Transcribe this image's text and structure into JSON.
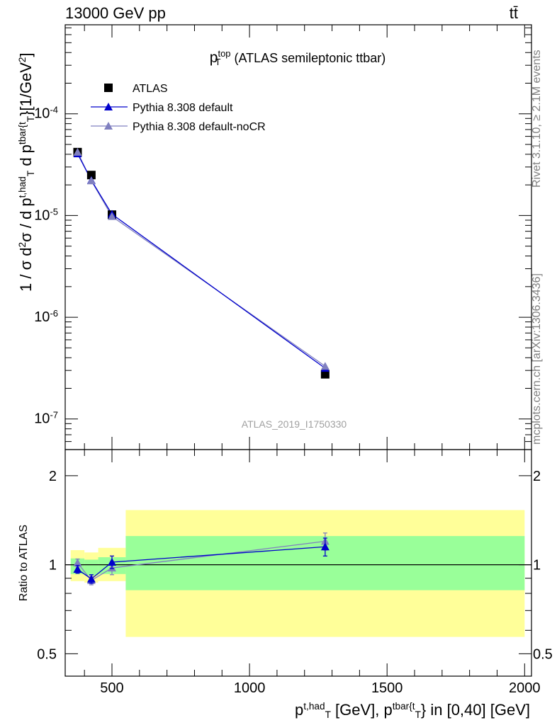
{
  "header": {
    "left": "13000 GeV pp",
    "right": "tt̄"
  },
  "side_labels": {
    "rivet": "Rivet 3.1.10, ≥ 2.1M events",
    "mcplots": "mcplots.cern.ch [arXiv:1306.3436]"
  },
  "colors": {
    "atlas": "#000000",
    "pythia_default": "#0000cc",
    "pythia_nocr": "#8080c0",
    "band_inner": "#99ff99",
    "band_outer": "#ffff99"
  },
  "chart_data": [
    {
      "type": "scatter",
      "title_main": "p",
      "title_sup": "top",
      "title_sub": "T",
      "title_rest": " (ATLAS semileptonic ttbar)",
      "watermark": "ATLAS_2019_I1750330",
      "ylabel_parts": [
        {
          "t": "1 / σ d",
          "s": ""
        },
        {
          "t": "2",
          "s": "sup"
        },
        {
          "t": "σ / d p",
          "s": ""
        },
        {
          "t": "t,had",
          "s": "sup"
        },
        {
          "t": "T",
          "s": "sub"
        },
        {
          "t": " d p",
          "s": ""
        },
        {
          "t": "tbar{t",
          "s": "sup"
        },
        {
          "t": "T",
          "s": "sub"
        },
        {
          "t": "}[1/GeV",
          "s": ""
        },
        {
          "t": "2",
          "s": "sup"
        },
        {
          "t": "]",
          "s": ""
        }
      ],
      "yscale": "log",
      "ylim": [
        5e-08,
        0.00075
      ],
      "xlim": [
        330,
        2025
      ],
      "yticks": [
        {
          "exp": "-7",
          "value": 1e-07
        },
        {
          "exp": "-6",
          "value": 1e-06
        },
        {
          "exp": "-5",
          "value": 1e-05
        },
        {
          "exp": "-4",
          "value": 0.0001
        }
      ],
      "legend": {
        "placement": "top-left",
        "entries": [
          "ATLAS",
          "Pythia 8.308 default",
          "Pythia 8.308 default-noCR"
        ]
      },
      "series": [
        {
          "name": "ATLAS",
          "style": "square",
          "x": [
            375,
            425,
            500,
            1275
          ],
          "y": [
            4.2e-05,
            2.5e-05,
            1.02e-05,
            2.75e-07
          ]
        },
        {
          "name": "Pythia 8.308 default",
          "style": "triangle-line",
          "x": [
            375,
            425,
            500,
            1275
          ],
          "y": [
            4.05e-05,
            2.22e-05,
            1.03e-05,
            3.15e-07
          ]
        },
        {
          "name": "Pythia 8.308 default-noCR",
          "style": "triangle-line",
          "x": [
            375,
            425,
            500,
            1275
          ],
          "y": [
            4.2e-05,
            2.2e-05,
            9.8e-06,
            3.3e-07
          ]
        }
      ]
    },
    {
      "type": "scatter",
      "ylabel": "Ratio to ATLAS",
      "yscale": "log",
      "ylim": [
        0.42,
        2.45
      ],
      "xlim": [
        330,
        2025
      ],
      "yticks": [
        {
          "label": "0.5",
          "value": 0.5
        },
        {
          "label": "1",
          "value": 1
        },
        {
          "label": "2",
          "value": 2
        }
      ],
      "xticks": [
        {
          "label": "500",
          "value": 500
        },
        {
          "label": "1000",
          "value": 1000
        },
        {
          "label": "1500",
          "value": 1500
        },
        {
          "label": "2000",
          "value": 2000
        }
      ],
      "xlabel_parts": [
        {
          "t": "p",
          "s": ""
        },
        {
          "t": "t,had",
          "s": "sup"
        },
        {
          "t": "T",
          "s": "sub"
        },
        {
          "t": " [GeV], p",
          "s": ""
        },
        {
          "t": "tbar{t",
          "s": "sup"
        },
        {
          "t": "T",
          "s": "sub"
        },
        {
          "t": "} in [0,40] [GeV]",
          "s": ""
        }
      ],
      "bands": [
        {
          "x0": 350,
          "x1": 400,
          "inner": [
            0.93,
            1.05
          ],
          "outer": [
            0.88,
            1.12
          ]
        },
        {
          "x0": 400,
          "x1": 450,
          "inner": [
            0.92,
            1.04
          ],
          "outer": [
            0.87,
            1.1
          ]
        },
        {
          "x0": 450,
          "x1": 550,
          "inner": [
            0.93,
            1.06
          ],
          "outer": [
            0.88,
            1.14
          ]
        },
        {
          "x0": 550,
          "x1": 2000,
          "inner": [
            0.82,
            1.25
          ],
          "outer": [
            0.57,
            1.53
          ]
        }
      ],
      "series": [
        {
          "name": "Pythia 8.308 default",
          "x": [
            375,
            425,
            500,
            1275
          ],
          "y": [
            0.965,
            0.895,
            1.02,
            1.15
          ],
          "err": [
            0.03,
            0.03,
            0.05,
            0.08
          ]
        },
        {
          "name": "Pythia 8.308 default-noCR",
          "x": [
            375,
            425,
            500,
            1275
          ],
          "y": [
            1.015,
            0.885,
            0.975,
            1.2
          ],
          "err": [
            0.03,
            0.03,
            0.05,
            0.08
          ]
        }
      ]
    }
  ]
}
